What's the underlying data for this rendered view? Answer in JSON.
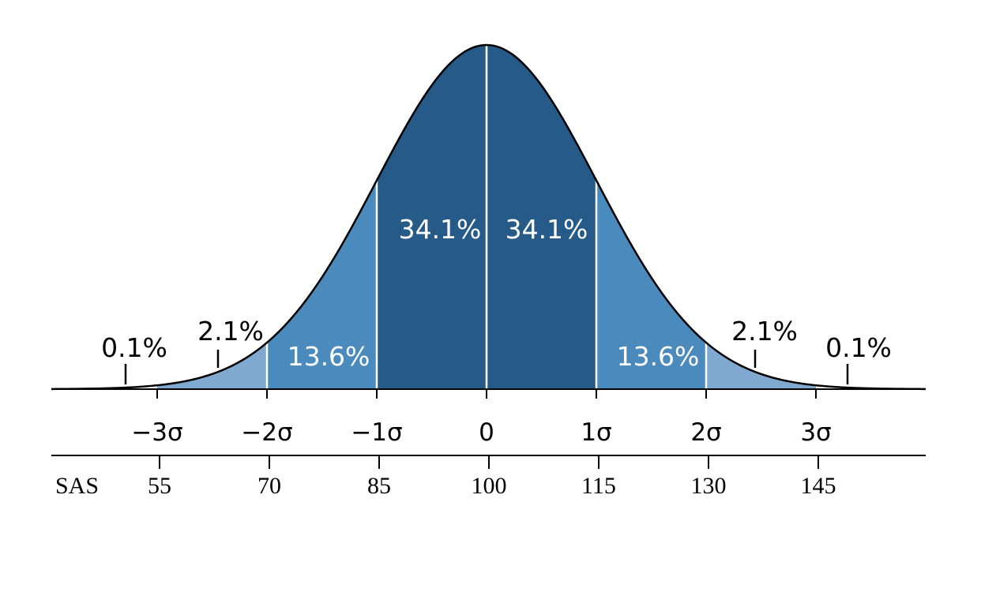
{
  "chart_data": {
    "type": "area",
    "distribution": "normal",
    "mean": 0,
    "sd": 1,
    "x_range": [
      -4,
      4
    ],
    "colors": {
      "center": "#265a88",
      "inner": "#4a8abc",
      "outer": "#80a9cf",
      "divider": "#ffffff",
      "curve": "#000000"
    },
    "regions": [
      {
        "from": -1,
        "to": 0,
        "label": "34.1%",
        "shade": "center",
        "label_color": "white"
      },
      {
        "from": 0,
        "to": 1,
        "label": "34.1%",
        "shade": "center",
        "label_color": "white"
      },
      {
        "from": -2,
        "to": -1,
        "label": "13.6%",
        "shade": "inner",
        "label_color": "white"
      },
      {
        "from": 1,
        "to": 2,
        "label": "13.6%",
        "shade": "inner",
        "label_color": "white"
      },
      {
        "from": -3,
        "to": -2,
        "label": "2.1%",
        "shade": "outer",
        "label_color": "black"
      },
      {
        "from": 2,
        "to": 3,
        "label": "2.1%",
        "shade": "outer",
        "label_color": "black"
      },
      {
        "from": -4,
        "to": -3,
        "label": "0.1%",
        "shade": "none",
        "label_color": "black"
      },
      {
        "from": 3,
        "to": 4,
        "label": "0.1%",
        "shade": "none",
        "label_color": "black"
      }
    ],
    "sigma_axis": {
      "ticks": [
        -3,
        -2,
        -1,
        0,
        1,
        2,
        3
      ],
      "tick_labels": [
        "−3σ",
        "−2σ",
        "−1σ",
        "0",
        "1σ",
        "2σ",
        "3σ"
      ]
    },
    "sas_axis": {
      "label": "SAS",
      "ticks": [
        -3,
        -2,
        -1,
        0,
        1,
        2,
        3
      ],
      "tick_labels": [
        "55",
        "70",
        "85",
        "100",
        "115",
        "130",
        "145"
      ]
    }
  }
}
